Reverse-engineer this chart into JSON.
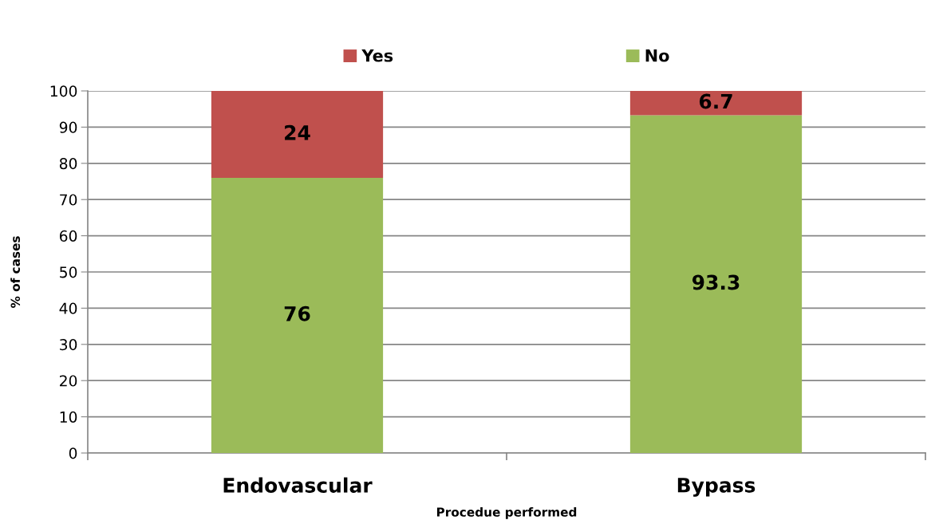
{
  "chart_data": {
    "type": "bar",
    "stacked": true,
    "xlabel": "Procedue performed",
    "ylabel": "% of cases",
    "categories": [
      "Endovascular",
      "Bypass"
    ],
    "series": [
      {
        "name": "No",
        "color": "#9bbb59",
        "values": [
          76,
          93.3
        ]
      },
      {
        "name": "Yes",
        "color": "#c0504d",
        "values": [
          24,
          6.7
        ]
      }
    ],
    "ylim": [
      0,
      100
    ],
    "yticks": [
      0,
      10,
      20,
      30,
      40,
      50,
      60,
      70,
      80,
      90,
      100
    ],
    "grid": "y",
    "legend": "top",
    "data_labels": true
  }
}
